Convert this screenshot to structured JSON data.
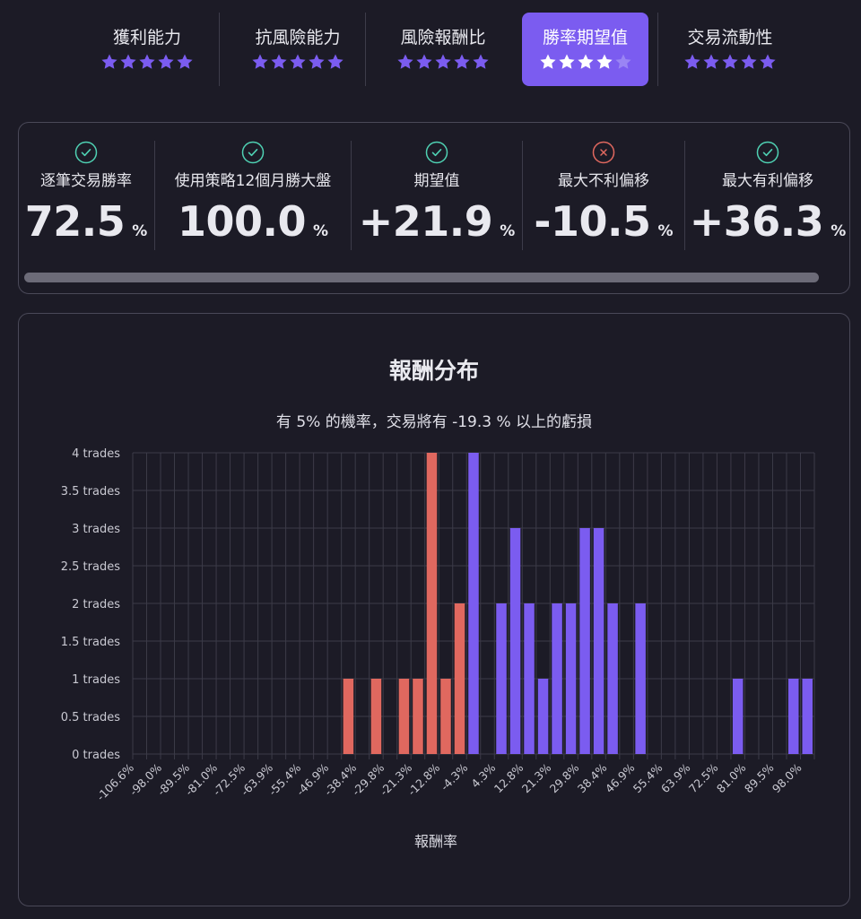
{
  "tabs": [
    {
      "label": "獲利能力",
      "stars": 5,
      "active": false
    },
    {
      "label": "抗風險能力",
      "stars": 5,
      "active": false
    },
    {
      "label": "風險報酬比",
      "stars": 5,
      "active": false
    },
    {
      "label": "勝率期望值",
      "stars": 4,
      "active": true
    },
    {
      "label": "交易流動性",
      "stars": 5,
      "active": false
    }
  ],
  "metrics": [
    {
      "label": "逐筆交易勝率",
      "value": "72.5",
      "unit": "%",
      "status": "check"
    },
    {
      "label": "使用策略12個月勝大盤",
      "value": "100.0",
      "unit": "%",
      "status": "check"
    },
    {
      "label": "期望值",
      "value": "+21.9",
      "unit": "%",
      "status": "check"
    },
    {
      "label": "最大不利偏移",
      "value": "-10.5",
      "unit": "%",
      "status": "cross"
    },
    {
      "label": "最大有利偏移",
      "value": "+36.3",
      "unit": "%",
      "status": "check"
    }
  ],
  "colors": {
    "accent": "#7b5cf0",
    "star": "#7b5cf0",
    "loss_bar": "#e0685f",
    "gain_bar": "#7b5cf0",
    "check": "#4fd1b3",
    "cross": "#e0685f"
  },
  "chart": {
    "title": "報酬分布",
    "subtitle": "有 5% 的機率，交易將有 -19.3 % 以上的虧損"
  },
  "chart_data": {
    "type": "bar",
    "xlabel": "報酬率",
    "ylabel": "",
    "ylim": [
      0,
      4
    ],
    "grid": true,
    "y_ticks": [
      "0 trades",
      "0.5 trades",
      "1 trades",
      "1.5 trades",
      "2 trades",
      "2.5 trades",
      "3 trades",
      "3.5 trades",
      "4 trades"
    ],
    "x_tick_labels": [
      "-106.6%",
      "-98.0%",
      "-89.5%",
      "-81.0%",
      "-72.5%",
      "-63.9%",
      "-55.4%",
      "-46.9%",
      "-38.4%",
      "-29.8%",
      "-21.3%",
      "-12.8%",
      "-4.3%",
      "4.3%",
      "12.8%",
      "21.3%",
      "29.8%",
      "38.4%",
      "46.9%",
      "55.4%",
      "63.9%",
      "72.5%",
      "81.0%",
      "89.5%",
      "98.0%"
    ],
    "bin_count": 49,
    "bins": [
      {
        "bin": 15,
        "value": 1,
        "series": "loss"
      },
      {
        "bin": 17,
        "value": 1,
        "series": "loss"
      },
      {
        "bin": 19,
        "value": 1,
        "series": "loss"
      },
      {
        "bin": 20,
        "value": 1,
        "series": "loss"
      },
      {
        "bin": 21,
        "value": 4,
        "series": "loss"
      },
      {
        "bin": 22,
        "value": 1,
        "series": "loss"
      },
      {
        "bin": 23,
        "value": 2,
        "series": "loss"
      },
      {
        "bin": 24,
        "value": 4,
        "series": "gain"
      },
      {
        "bin": 26,
        "value": 2,
        "series": "gain"
      },
      {
        "bin": 27,
        "value": 3,
        "series": "gain"
      },
      {
        "bin": 28,
        "value": 2,
        "series": "gain"
      },
      {
        "bin": 29,
        "value": 1,
        "series": "gain"
      },
      {
        "bin": 30,
        "value": 2,
        "series": "gain"
      },
      {
        "bin": 31,
        "value": 2,
        "series": "gain"
      },
      {
        "bin": 32,
        "value": 3,
        "series": "gain"
      },
      {
        "bin": 33,
        "value": 3,
        "series": "gain"
      },
      {
        "bin": 34,
        "value": 2,
        "series": "gain"
      },
      {
        "bin": 36,
        "value": 2,
        "series": "gain"
      },
      {
        "bin": 43,
        "value": 1,
        "series": "gain"
      },
      {
        "bin": 47,
        "value": 1,
        "series": "gain"
      },
      {
        "bin": 48,
        "value": 1,
        "series": "gain"
      }
    ]
  }
}
